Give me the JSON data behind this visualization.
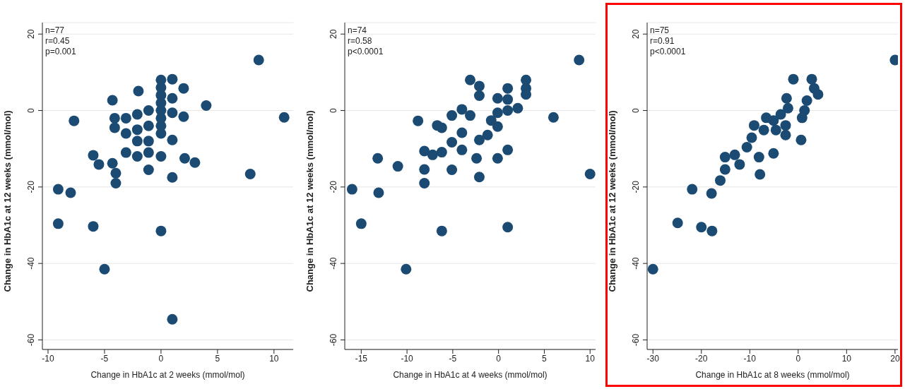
{
  "chart_data": [
    {
      "type": "scatter",
      "xlabel": "Change in HbA1c at 2 weeks (mmol/mol)",
      "ylabel": "Change in HbA1c at 12 weeks (mmol/mol)",
      "annotations": [
        "n=77",
        "r=0.45",
        "p=0.001"
      ],
      "color": "#1b4a73",
      "marker": "circle",
      "grid": "y",
      "x": [
        8.65,
        10.9,
        -7.7,
        4.0,
        2.0,
        2.0,
        1.0,
        1.0,
        1.0,
        1.0,
        1.0,
        0,
        0,
        0,
        0,
        0,
        0,
        0,
        0,
        0,
        0,
        -2.0,
        -4.3,
        -4.1,
        -4.1,
        -3.1,
        -3.1,
        -3.1,
        -2.1,
        -2.1,
        -2.1,
        -2.1,
        -1.1,
        -1.1,
        -1.1,
        -1.1,
        -1.1,
        2.1,
        3.0,
        7.9,
        -6.0,
        -5.5,
        -4.3,
        -4.0,
        -4.0,
        -9.1,
        -8.0,
        -9.1,
        -6.0,
        -5.0,
        1.0
      ],
      "values": [
        13.2,
        -1.8,
        -2.7,
        1.3,
        5.8,
        -1.6,
        8.2,
        3.2,
        -0.6,
        -7.7,
        -17.5,
        8,
        6,
        4,
        2,
        0,
        -2,
        -4,
        -6,
        -12,
        -31.5,
        5.1,
        2.7,
        -2,
        -4.5,
        -2,
        -6,
        -11,
        -1,
        -5,
        -8,
        -12,
        0,
        -4,
        -8,
        -11,
        -15.5,
        -12.5,
        -13.6,
        -16.6,
        -11.7,
        -14.1,
        -13.8,
        -16.4,
        -19,
        -20.6,
        -21.5,
        -29.6,
        -30.3,
        -41.5,
        -54.6
      ],
      "xlim": [
        -10.5,
        11.7
      ],
      "xticks": [
        -10,
        -5,
        0,
        5,
        10
      ],
      "ylim": [
        -62.5,
        23
      ],
      "yticks": [
        -60,
        -40,
        -20,
        0,
        20
      ]
    },
    {
      "type": "scatter",
      "xlabel": "Change in HbA1c at 4 weeks (mmol/mol)",
      "ylabel": "Change in HbA1c at 12 weeks (mmol/mol)",
      "annotations": [
        "n=74",
        "r=0.58",
        "p<0.0001"
      ],
      "color": "#1b4a73",
      "marker": "circle",
      "grid": "y",
      "x": [
        8.8,
        10.0,
        6.0,
        3.0,
        3.0,
        3.0,
        1.0,
        1.0,
        1.0,
        1.0,
        1.0,
        2.1,
        -0.1,
        -0.1,
        -0.1,
        -0.1,
        -0.8,
        -1.2,
        -2.1,
        -2.1,
        -2.1,
        -2.1,
        -2.4,
        -3.1,
        -3.1,
        -4.0,
        -4.0,
        -4.0,
        -5.1,
        -5.1,
        -5.1,
        -6.2,
        -6.2,
        -6.2,
        -6.7,
        -7.2,
        -8.1,
        -8.1,
        -8.1,
        -8.8,
        -11.0,
        -13.2,
        -13.1,
        -16.0,
        -15.0,
        -10.1
      ],
      "values": [
        13.2,
        -16.6,
        -1.8,
        8,
        5.8,
        4.2,
        5.8,
        2.9,
        0,
        -10.3,
        -30.5,
        0.6,
        3.2,
        -0.6,
        -4.2,
        -12.5,
        -2.6,
        -6.4,
        6.4,
        3.9,
        -7.7,
        -17.4,
        -12.5,
        8,
        -1.3,
        0.3,
        -5.8,
        -10.3,
        -1.3,
        -8.3,
        -15.5,
        -4.5,
        -10.9,
        -31.5,
        -3.9,
        -11.6,
        -10.6,
        -15.4,
        -19,
        -2.7,
        -14.6,
        -12.5,
        -21.5,
        -20.6,
        -29.6,
        -41.5
      ],
      "xlim": [
        -16.8,
        10.6
      ],
      "xticks": [
        -15,
        -10,
        -5,
        0,
        5,
        10
      ],
      "ylim": [
        -62.5,
        23
      ],
      "yticks": [
        -60,
        -40,
        -20,
        0,
        20
      ]
    },
    {
      "type": "scatter",
      "xlabel": "Change in HbA1c at 8 weeks (mmol/mol)",
      "ylabel": "Change in HbA1c at 12 weeks (mmol/mol)",
      "annotations": [
        "n=75",
        "r=0.91",
        "p<0.0001"
      ],
      "color": "#1b4a73",
      "marker": "circle",
      "grid": "y",
      "x": [
        20,
        -1.0,
        2.8,
        3.3,
        4.1,
        1.8,
        1.3,
        0.8,
        0.6,
        -2.4,
        -2.1,
        -3.6,
        -2.6,
        -2.6,
        -5.1,
        -4.6,
        -6.6,
        -7.1,
        -9.1,
        -9.6,
        -10.6,
        -5.1,
        -8.1,
        -7.9,
        -12.1,
        -13.1,
        -15.1,
        -15.1,
        -16.1,
        -21.9,
        -17.9,
        -24.9,
        -20.0,
        -17.8,
        -30
      ],
      "values": [
        13.2,
        8.2,
        8.2,
        5.8,
        4.2,
        2.6,
        0,
        -1.9,
        -7.7,
        3.2,
        0.6,
        -1,
        -3.9,
        -6.4,
        -2.6,
        -5.1,
        -1.9,
        -5.1,
        -3.9,
        -7.1,
        -9.6,
        -11.2,
        -12.2,
        -16.7,
        -14.1,
        -11.6,
        -12.2,
        -15.4,
        -18.3,
        -20.6,
        -21.7,
        -29.4,
        -30.5,
        -31.5,
        -41.5
      ],
      "xlim": [
        -31.2,
        20.6
      ],
      "xticks": [
        -30,
        -20,
        -10,
        0,
        10,
        20
      ],
      "ylim": [
        -62.5,
        23
      ],
      "yticks": [
        -60,
        -40,
        -20,
        0,
        20
      ]
    }
  ]
}
